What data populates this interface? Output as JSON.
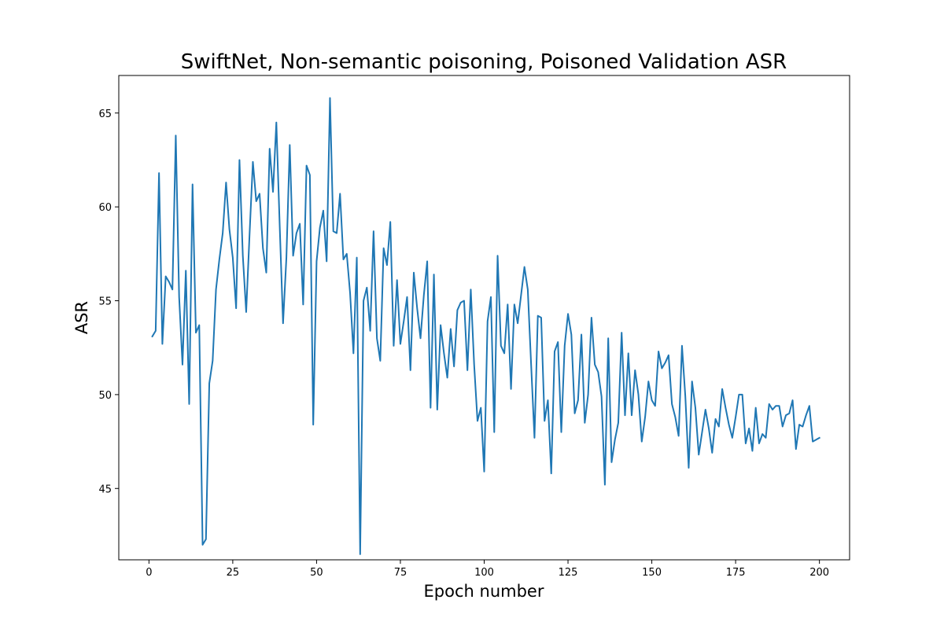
{
  "chart_data": {
    "type": "line",
    "title": "SwiftNet, Non-semantic poisoning, Poisoned Validation ASR",
    "xlabel": "Epoch number",
    "ylabel": "ASR",
    "xlim": [
      -9,
      209
    ],
    "ylim": [
      41.2,
      67.0
    ],
    "xticks": [
      0,
      25,
      50,
      75,
      100,
      125,
      150,
      175,
      200
    ],
    "yticks": [
      45,
      50,
      55,
      60,
      65
    ],
    "grid": false,
    "legend": "none",
    "colors": {
      "line": "#1f77b4",
      "axes": "#000000",
      "background": "#ffffff"
    },
    "series": [
      {
        "x": [
          1,
          2,
          3,
          4,
          5,
          6,
          7,
          8,
          9,
          10,
          11,
          12,
          13,
          14,
          15,
          16,
          17,
          18,
          19,
          20,
          21,
          22,
          23,
          24,
          25,
          26,
          27,
          28,
          29,
          30,
          31,
          32,
          33,
          34,
          35,
          36,
          37,
          38,
          39,
          40,
          41,
          42,
          43,
          44,
          45,
          46,
          47,
          48,
          49,
          50,
          51,
          52,
          53,
          54,
          55,
          56,
          57,
          58,
          59,
          60,
          61,
          62,
          63,
          64,
          65,
          66,
          67,
          68,
          69,
          70,
          71,
          72,
          73,
          74,
          75,
          76,
          77,
          78,
          79,
          80,
          81,
          82,
          83,
          84,
          85,
          86,
          87,
          88,
          89,
          90,
          91,
          92,
          93,
          94,
          95,
          96,
          97,
          98,
          99,
          100,
          101,
          102,
          103,
          104,
          105,
          106,
          107,
          108,
          109,
          110,
          111,
          112,
          113,
          114,
          115,
          116,
          117,
          118,
          119,
          120,
          121,
          122,
          123,
          124,
          125,
          126,
          127,
          128,
          129,
          130,
          131,
          132,
          133,
          134,
          135,
          136,
          137,
          138,
          139,
          140,
          141,
          142,
          143,
          144,
          145,
          146,
          147,
          148,
          149,
          150,
          151,
          152,
          153,
          154,
          155,
          156,
          157,
          158,
          159,
          160,
          161,
          162,
          163,
          164,
          165,
          166,
          167,
          168,
          169,
          170,
          171,
          172,
          173,
          174,
          175,
          176,
          177,
          178,
          179,
          180,
          181,
          182,
          183,
          184,
          185,
          186,
          187,
          188,
          189,
          190,
          191,
          192,
          193,
          194,
          195,
          196,
          197,
          198,
          199,
          200
        ],
        "y": [
          53.1,
          53.4,
          61.8,
          52.7,
          56.3,
          56.0,
          55.6,
          63.8,
          55.2,
          51.6,
          56.6,
          49.5,
          61.2,
          53.3,
          53.7,
          42.0,
          42.3,
          50.6,
          51.8,
          55.6,
          57.2,
          58.6,
          61.3,
          58.8,
          57.3,
          54.6,
          62.5,
          57.4,
          54.4,
          58.5,
          62.4,
          60.3,
          60.7,
          57.8,
          56.5,
          63.1,
          60.8,
          64.5,
          59.0,
          53.8,
          57.3,
          63.3,
          57.4,
          58.6,
          59.1,
          54.8,
          62.2,
          61.7,
          48.4,
          57.1,
          58.9,
          59.8,
          57.1,
          65.8,
          58.7,
          58.6,
          60.7,
          57.2,
          57.5,
          55.4,
          52.2,
          57.3,
          41.5,
          55.0,
          55.7,
          53.4,
          58.7,
          53.0,
          51.8,
          57.8,
          56.9,
          59.2,
          52.6,
          56.1,
          52.7,
          53.9,
          55.2,
          51.3,
          56.5,
          54.6,
          53.0,
          55.3,
          57.1,
          49.3,
          56.4,
          49.2,
          53.7,
          52.2,
          50.9,
          53.5,
          51.5,
          54.5,
          54.9,
          55.0,
          51.3,
          55.6,
          51.6,
          48.6,
          49.3,
          45.9,
          53.9,
          55.2,
          48.0,
          57.4,
          52.6,
          52.2,
          54.8,
          50.3,
          54.8,
          53.8,
          55.3,
          56.8,
          55.6,
          51.6,
          47.7,
          54.2,
          54.1,
          48.6,
          49.7,
          45.8,
          52.3,
          52.8,
          48.0,
          52.6,
          54.3,
          53.2,
          49.0,
          49.7,
          53.2,
          48.5,
          50.0,
          54.1,
          51.6,
          51.2,
          49.9,
          45.2,
          53.0,
          46.4,
          47.6,
          48.5,
          53.3,
          48.9,
          52.2,
          48.9,
          51.3,
          50.0,
          47.5,
          48.8,
          50.7,
          49.7,
          49.4,
          52.3,
          51.4,
          51.7,
          52.1,
          49.5,
          48.8,
          47.8,
          52.6,
          49.9,
          46.1,
          50.7,
          49.3,
          46.8,
          48.0,
          49.2,
          48.2,
          46.9,
          48.7,
          48.3,
          50.3,
          49.3,
          48.4,
          47.7,
          48.8,
          50.0,
          50.0,
          47.4,
          48.2,
          47.0,
          49.3,
          47.4,
          47.9,
          47.7,
          49.5,
          49.2,
          49.4,
          49.4,
          48.3,
          48.9,
          49.0,
          49.7,
          47.1,
          48.4,
          48.3,
          48.9,
          49.4,
          47.5,
          47.6,
          47.7
        ]
      }
    ]
  }
}
